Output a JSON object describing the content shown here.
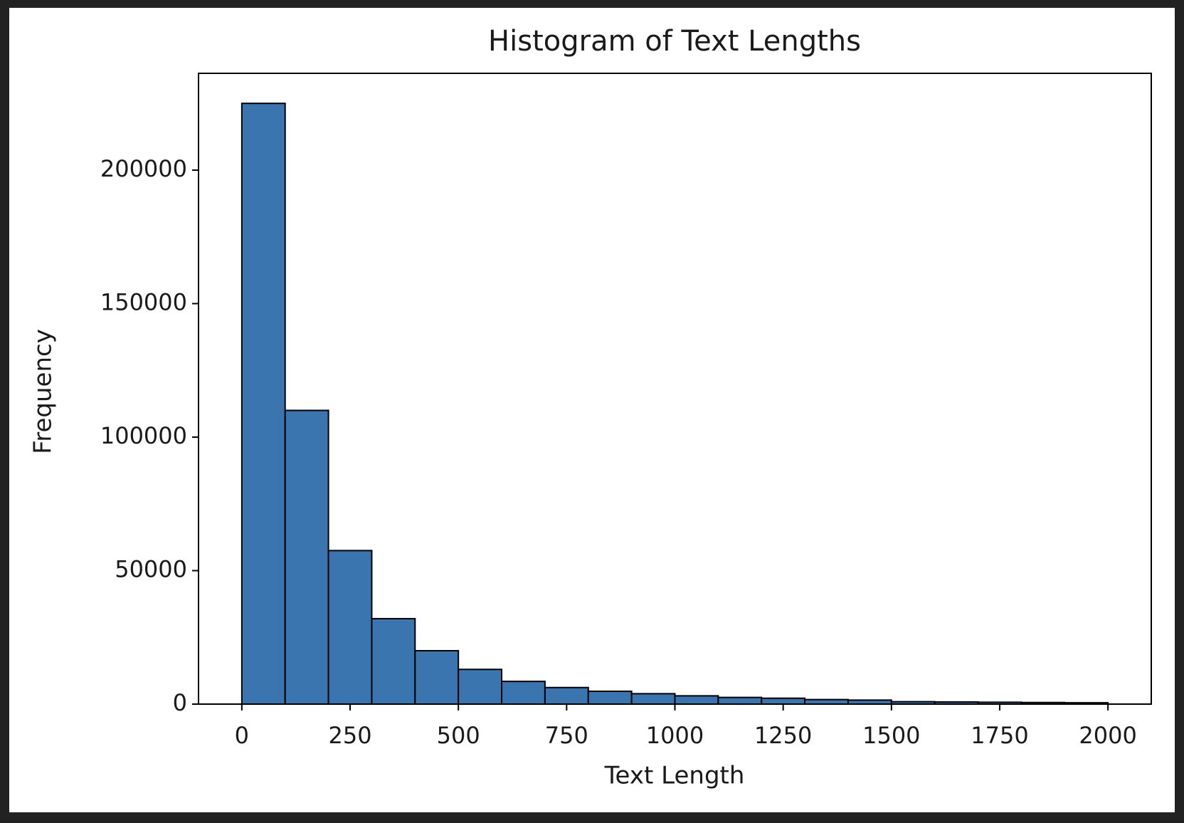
{
  "chart_data": {
    "type": "histogram",
    "title": "Histogram of Text Lengths",
    "x_label": "Text Length",
    "y_label": "Frequency",
    "bins": [
      0,
      100,
      200,
      300,
      400,
      500,
      600,
      700,
      800,
      900,
      1000,
      1100,
      1200,
      1300,
      1400,
      1500,
      1600,
      1700,
      1800,
      1900,
      2000
    ],
    "counts": [
      225000,
      110000,
      57500,
      32000,
      20000,
      13000,
      8500,
      6200,
      4800,
      3900,
      3100,
      2500,
      2200,
      1700,
      1500,
      900,
      800,
      700,
      600,
      500
    ],
    "color": "#3a75af",
    "edgecolor": "#000000",
    "xlim": [
      -100,
      2100
    ],
    "xticks": [
      0,
      250,
      500,
      750,
      1000,
      1250,
      1500,
      1750,
      2000
    ],
    "ylim": [
      0,
      236250
    ],
    "yticks": [
      0,
      50000,
      100000,
      150000,
      200000
    ],
    "grid": false
  }
}
